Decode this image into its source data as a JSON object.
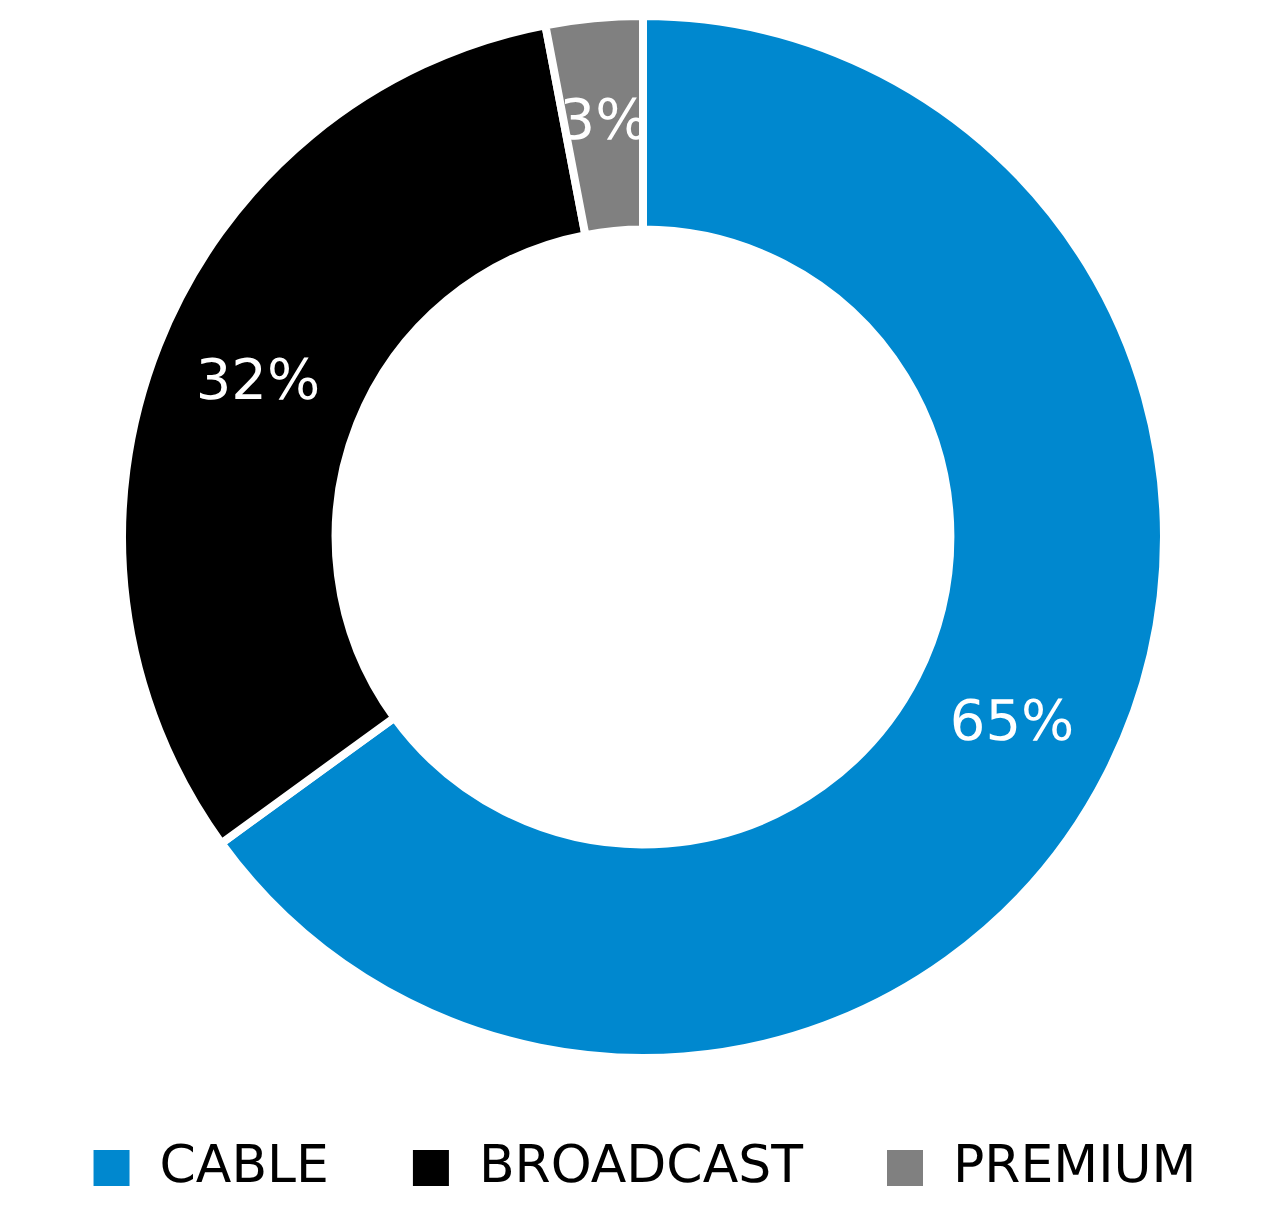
{
  "chart_data": {
    "type": "donut",
    "categories": [
      "CABLE",
      "BROADCAST",
      "PREMIUM"
    ],
    "values": [
      65,
      32,
      3
    ],
    "colors": [
      "#0088cf",
      "#000000",
      "#808080"
    ],
    "value_labels": [
      "65%",
      "32%",
      "3%"
    ],
    "legend": "bottom"
  }
}
